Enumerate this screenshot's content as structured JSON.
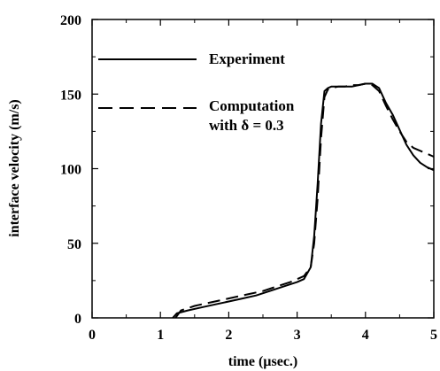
{
  "chart_data": {
    "type": "line",
    "title": "",
    "xlabel": "time (µsec.)",
    "ylabel": "interface velocity (m/s)",
    "xlim": [
      0,
      5
    ],
    "ylim": [
      0,
      200
    ],
    "xticks": [
      "0",
      "1",
      "2",
      "3",
      "4",
      "5"
    ],
    "yticks": [
      "0",
      "50",
      "100",
      "150",
      "200"
    ],
    "grid": false,
    "legend_position": "upper-left",
    "series": [
      {
        "name": "Experiment",
        "style": "solid",
        "color": "#000000",
        "x": [
          1.18,
          1.24,
          1.4,
          1.6,
          1.8,
          2.0,
          2.2,
          2.4,
          2.6,
          2.8,
          3.0,
          3.1,
          3.2,
          3.25,
          3.3,
          3.35,
          3.4,
          3.45,
          3.5,
          3.6,
          3.7,
          3.8,
          3.9,
          4.0,
          4.1,
          4.2,
          4.3,
          4.4,
          4.5,
          4.6,
          4.7,
          4.8,
          4.9,
          5.0
        ],
        "y": [
          0,
          3,
          5,
          7,
          9,
          11,
          13,
          15,
          18,
          21,
          24,
          26,
          34,
          55,
          90,
          130,
          152,
          154,
          155,
          155,
          155,
          155,
          156,
          157,
          157,
          154,
          144,
          136,
          126,
          116,
          109,
          104,
          101,
          99
        ]
      },
      {
        "name": "Computation\nwith δ = 0.3",
        "label_lines": [
          "Computation",
          "with δ = 0.3"
        ],
        "style": "dashed",
        "color": "#000000",
        "x": [
          1.22,
          1.3,
          1.5,
          1.7,
          1.9,
          2.1,
          2.3,
          2.5,
          2.7,
          2.9,
          3.1,
          3.2,
          3.25,
          3.3,
          3.35,
          3.4,
          3.45,
          3.5,
          3.6,
          3.7,
          3.8,
          3.9,
          4.0,
          4.1,
          4.2,
          4.3,
          4.4,
          4.5,
          4.6,
          4.7,
          4.8,
          4.9,
          5.0
        ],
        "y": [
          0,
          5,
          8,
          10,
          12,
          14,
          16,
          18,
          21,
          24,
          28,
          34,
          50,
          80,
          120,
          148,
          153,
          154,
          155,
          155,
          156,
          156,
          157,
          156,
          152,
          142,
          133,
          125,
          118,
          114,
          112,
          110,
          108
        ]
      }
    ]
  }
}
